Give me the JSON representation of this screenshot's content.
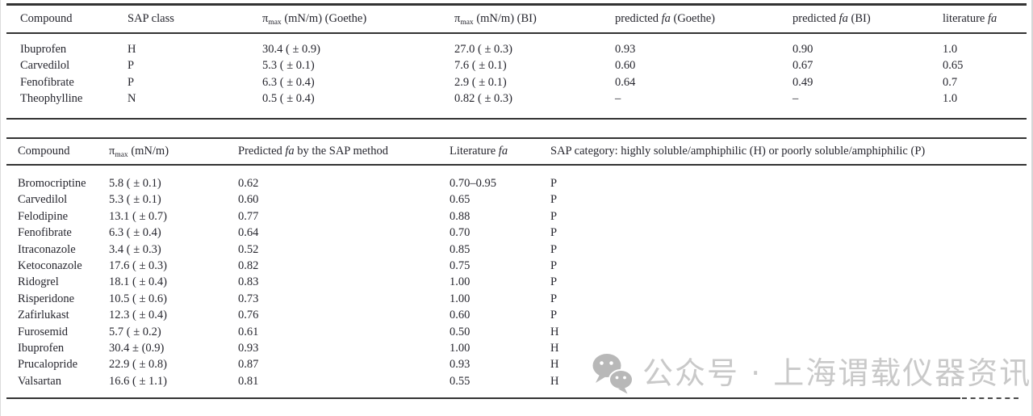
{
  "page": {
    "background": "#ffffff",
    "text_color": "#26262e",
    "rule_color": "#333333"
  },
  "table1": {
    "headers": [
      {
        "text": "Compound"
      },
      {
        "text": "SAP class"
      },
      {
        "symbol": "π",
        "sub": "max",
        "rest": " (mN/m) (Goethe)"
      },
      {
        "symbol": "π",
        "sub": "max",
        "rest": " (mN/m) (BI)"
      },
      {
        "pre": "predicted ",
        "italic": "fa",
        "post": " (Goethe)"
      },
      {
        "pre": "predicted ",
        "italic": "fa",
        "post": " (BI)"
      },
      {
        "pre": "literature ",
        "italic": "fa",
        "post": ""
      }
    ],
    "rows": [
      [
        "Ibuprofen",
        "H",
        "30.4 ( ± 0.9)",
        "27.0 ( ± 0.3)",
        "0.93",
        "0.90",
        "1.0"
      ],
      [
        "Carvedilol",
        "P",
        "5.3 ( ± 0.1)",
        "7.6 ( ± 0.1)",
        "0.60",
        "0.67",
        "0.65"
      ],
      [
        "Fenofibrate",
        "P",
        "6.3 ( ± 0.4)",
        "2.9 ( ± 0.1)",
        "0.64",
        "0.49",
        "0.7"
      ],
      [
        "Theophylline",
        "N",
        "0.5 ( ± 0.4)",
        "0.82 ( ± 0.3)",
        "–",
        "–",
        "1.0"
      ]
    ]
  },
  "table2": {
    "headers": [
      {
        "text": "Compound"
      },
      {
        "symbol": "π",
        "sub": "max",
        "rest": " (mN/m)"
      },
      {
        "pre": "Predicted ",
        "italic": "fa",
        "post": " by the SAP method"
      },
      {
        "pre": "Literature ",
        "italic": "fa",
        "post": ""
      },
      {
        "text": "SAP category: highly soluble/amphiphilic (H) or poorly soluble/amphiphilic (P)"
      }
    ],
    "rows": [
      [
        "Bromocriptine",
        "5.8 ( ± 0.1)",
        "0.62",
        "0.70–0.95",
        "P"
      ],
      [
        "Carvedilol",
        "5.3 ( ± 0.1)",
        "0.60",
        "0.65",
        "P"
      ],
      [
        "Felodipine",
        "13.1 ( ± 0.7)",
        "0.77",
        "0.88",
        "P"
      ],
      [
        "Fenofibrate",
        "6.3 ( ± 0.4)",
        "0.64",
        "0.70",
        "P"
      ],
      [
        "Itraconazole",
        "3.4 ( ± 0.3)",
        "0.52",
        "0.85",
        "P"
      ],
      [
        "Ketoconazole",
        "17.6 ( ± 0.3)",
        "0.82",
        "0.75",
        "P"
      ],
      [
        "Ridogrel",
        "18.1 ( ± 0.4)",
        "0.83",
        "1.00",
        "P"
      ],
      [
        "Risperidone",
        "10.5 ( ± 0.6)",
        "0.73",
        "1.00",
        "P"
      ],
      [
        "Zafirlukast",
        "12.3 ( ± 0.4)",
        "0.76",
        "0.60",
        "P"
      ],
      [
        "Furosemid",
        "5.7 ( ± 0.2)",
        "0.61",
        "0.50",
        "H"
      ],
      [
        "Ibuprofen",
        "30.4 ± (0.9)",
        "0.93",
        "1.00",
        "H"
      ],
      [
        "Prucalopride",
        "22.9 ( ± 0.8)",
        "0.87",
        "0.93",
        "H"
      ],
      [
        "Valsartan",
        "16.6 ( ± 1.1)",
        "0.81",
        "0.55",
        "H"
      ]
    ]
  },
  "watermark": {
    "icon": "wechat-icon",
    "text": "公众号 · 上海谓载仪器资讯",
    "text_color": "#c9c9c9",
    "icon_color": "#b8b8b8"
  }
}
